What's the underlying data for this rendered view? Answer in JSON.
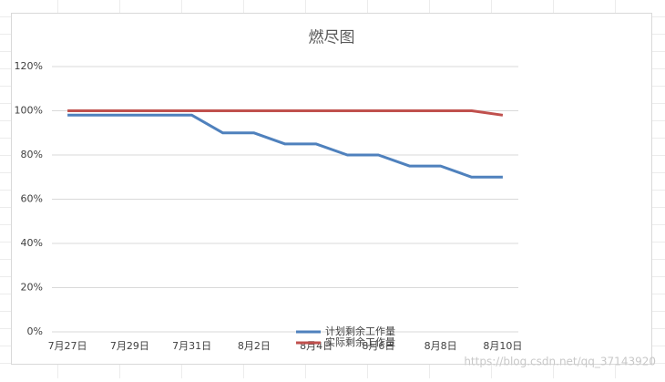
{
  "chart_data": {
    "type": "line",
    "title": "燃尽图",
    "categories": [
      "7月27日",
      null,
      "7月29日",
      null,
      "7月31日",
      null,
      "8月2日",
      null,
      "8月4日",
      null,
      "8月6日",
      null,
      "8月8日",
      null,
      "8月10日"
    ],
    "series": [
      {
        "name": "计划剩余工作量",
        "color": "#4f81bd",
        "values": [
          98,
          98,
          98,
          98,
          98,
          90,
          90,
          85,
          85,
          80,
          80,
          75,
          75,
          70,
          70
        ]
      },
      {
        "name": "实际剩余工作量",
        "color": "#c0504d",
        "values": [
          100,
          100,
          100,
          100,
          100,
          100,
          100,
          100,
          100,
          100,
          100,
          100,
          100,
          100,
          98
        ]
      }
    ],
    "ylim": [
      0,
      120
    ],
    "yticks": [
      {
        "value": 0,
        "label": "0%"
      },
      {
        "value": 20,
        "label": "20%"
      },
      {
        "value": 40,
        "label": "40%"
      },
      {
        "value": 60,
        "label": "60%"
      },
      {
        "value": 80,
        "label": "80%"
      },
      {
        "value": 100,
        "label": "100%"
      },
      {
        "value": 120,
        "label": "120%"
      }
    ],
    "grid": true,
    "legend": "bottom"
  },
  "watermark": "https://blog.csdn.net/qq_37143920"
}
